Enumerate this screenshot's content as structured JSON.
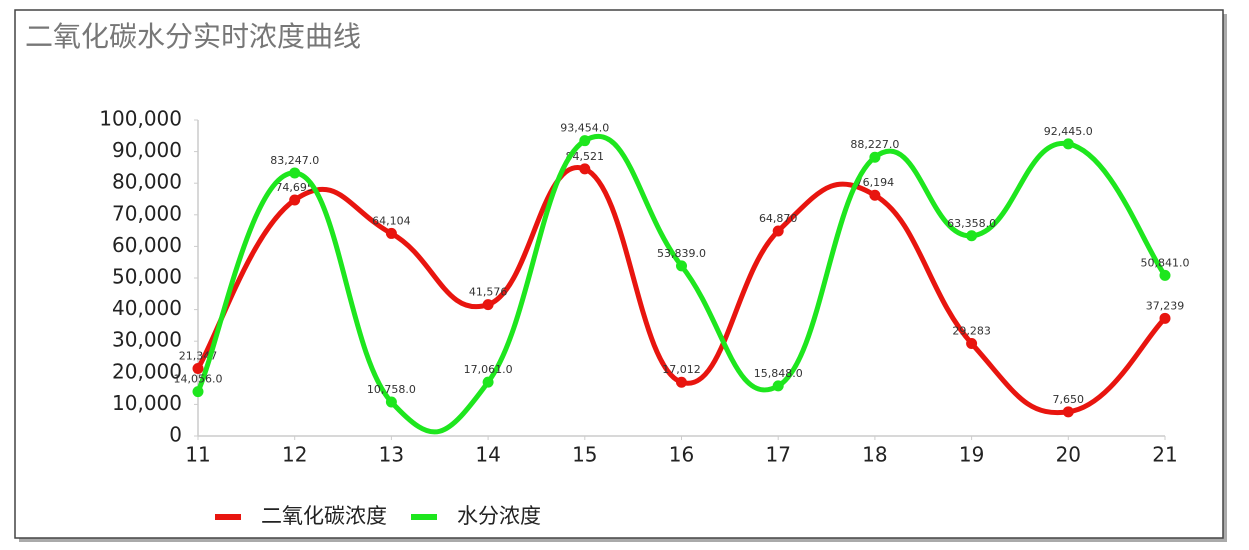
{
  "chart_data": {
    "type": "line",
    "title": "二氧化碳水分实时浓度曲线",
    "x": [
      11,
      12,
      13,
      14,
      15,
      16,
      17,
      18,
      19,
      20,
      21
    ],
    "xlim": [
      11,
      21
    ],
    "xticks": [
      11,
      12,
      13,
      14,
      15,
      16,
      17,
      18,
      19,
      20,
      21
    ],
    "ylim": [
      0,
      100000
    ],
    "yticks": [
      0,
      {
        "value": 10000,
        "label": "10,000"
      },
      {
        "value": 20000,
        "label": "20,000"
      },
      {
        "value": 30000,
        "label": "30,000"
      },
      {
        "value": 40000,
        "label": "40,000"
      },
      {
        "value": 50000,
        "label": "50,000"
      },
      {
        "value": 60000,
        "label": "60,000"
      },
      {
        "value": 70000,
        "label": "70,000"
      },
      {
        "value": 80000,
        "label": "80,000"
      },
      {
        "value": 90000,
        "label": "90,000"
      },
      {
        "value": 100000,
        "label": "100,000"
      }
    ],
    "grid": false,
    "legend": "bottom",
    "series": [
      {
        "name": "二氧化碳浓度",
        "color": "#e8150f",
        "values": [
          21347,
          74695,
          64104,
          41576,
          84521,
          17012,
          64870,
          76194,
          29283,
          7650,
          37239
        ],
        "value_labels": [
          "21,347",
          "74,695",
          "64,104",
          "41,576",
          "84,521",
          "17,012",
          "64,870",
          "76,194",
          "29,283",
          "7,650",
          "37,239"
        ]
      },
      {
        "name": "水分浓度",
        "color": "#1ee61e",
        "values": [
          14056,
          83247,
          10758,
          17061,
          93454,
          53839,
          15848,
          88227,
          63358,
          92445,
          50841
        ],
        "value_labels": [
          "14,056.0",
          "83,247.0",
          "10,758.0",
          "17,061.0",
          "93,454.0",
          "53,839.0",
          "15,848.0",
          "88,227.0",
          "63,358.0",
          "92,445.0",
          "50,841.0"
        ]
      }
    ]
  }
}
